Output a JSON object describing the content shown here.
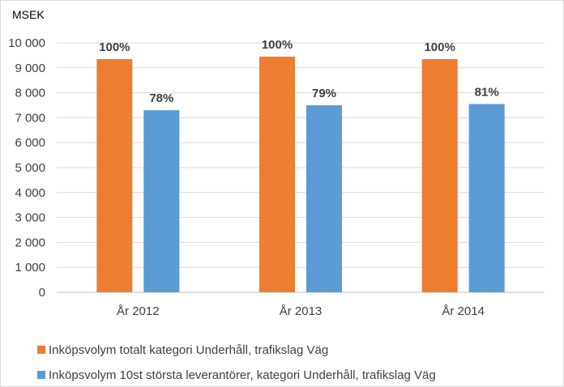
{
  "chart_data": {
    "type": "bar",
    "unit_label": "MSEK",
    "categories": [
      "År 2012",
      "År 2013",
      "År 2014"
    ],
    "y_ticks": [
      "0",
      "1 000",
      "2 000",
      "3 000",
      "4 000",
      "5 000",
      "6 000",
      "7 000",
      "8 000",
      "9 000",
      "10 000"
    ],
    "ylim": [
      0,
      10000
    ],
    "grid": true,
    "legend_position": "bottom",
    "series": [
      {
        "name": "Inköpsvolym totalt kategori Underhåll, trafikslag Väg",
        "color": "#ED7D31",
        "values": [
          9350,
          9450,
          9350
        ],
        "labels": [
          "100%",
          "100%",
          "100%"
        ]
      },
      {
        "name": "Inköpsvolym 10st största leverantörer, kategori Underhåll, trafikslag Väg",
        "color": "#5B9BD5",
        "values": [
          7300,
          7500,
          7550
        ],
        "labels": [
          "78%",
          "79%",
          "81%"
        ]
      }
    ]
  }
}
